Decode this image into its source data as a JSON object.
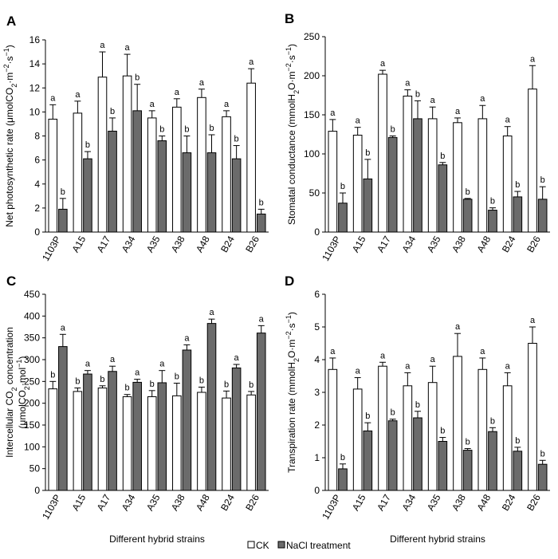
{
  "figure": {
    "legend": [
      {
        "key": "ck",
        "label": "CK",
        "color": "#ffffff"
      },
      {
        "key": "nacl",
        "label": "NaCl treatment",
        "color": "#6b6b6b"
      }
    ]
  },
  "chart_data": [
    {
      "panel": "A",
      "type": "bar",
      "ylabel_parts": [
        [
          "Net photosynthetic rate (μmolCO",
          ""
        ],
        [
          "2",
          "sub"
        ],
        [
          "·m",
          ""
        ],
        [
          "−2",
          "sup"
        ],
        [
          "·s",
          ""
        ],
        [
          "−1",
          "sup"
        ],
        [
          ")",
          ""
        ]
      ],
      "xlabel": "",
      "categories": [
        "1103P",
        "A15",
        "A17",
        "A34",
        "A35",
        "A38",
        "A48",
        "B24",
        "B26"
      ],
      "ylim": [
        0,
        16
      ],
      "yticks": [
        0,
        2,
        4,
        6,
        8,
        10,
        12,
        14,
        16
      ],
      "series": [
        {
          "key": "ck",
          "values": [
            9.4,
            9.9,
            12.9,
            13.0,
            9.5,
            10.4,
            11.2,
            9.6,
            12.4
          ],
          "errors": [
            1.2,
            1.0,
            2.1,
            1.8,
            0.6,
            0.7,
            0.7,
            0.5,
            1.2
          ],
          "letters": [
            "a",
            "a",
            "a",
            "a",
            "a",
            "a",
            "a",
            "a",
            "a"
          ]
        },
        {
          "key": "nacl",
          "values": [
            1.9,
            6.1,
            8.4,
            10.1,
            7.6,
            6.6,
            6.6,
            6.1,
            1.5
          ],
          "errors": [
            0.9,
            0.6,
            1.1,
            2.2,
            0.4,
            1.4,
            1.5,
            1.1,
            0.4
          ],
          "letters": [
            "b",
            "b",
            "b",
            "b",
            "b",
            "b",
            "b",
            "b",
            "b"
          ]
        }
      ]
    },
    {
      "panel": "B",
      "type": "bar",
      "ylabel_parts": [
        [
          "Stomatal conductance (mmolH",
          ""
        ],
        [
          "2",
          "sub"
        ],
        [
          "O·m",
          ""
        ],
        [
          "−2",
          "sup"
        ],
        [
          "·s",
          ""
        ],
        [
          "−1",
          "sup"
        ],
        [
          ")",
          ""
        ]
      ],
      "xlabel": "",
      "categories": [
        "1103P",
        "A15",
        "A17",
        "A34",
        "A35",
        "A38",
        "A48",
        "B24",
        "B26"
      ],
      "ylim": [
        0,
        250
      ],
      "yticks": [
        0,
        50,
        100,
        150,
        200,
        250
      ],
      "series": [
        {
          "key": "ck",
          "values": [
            129,
            124,
            202,
            174,
            145,
            140,
            145,
            123,
            183
          ],
          "errors": [
            15,
            10,
            5,
            8,
            15,
            6,
            17,
            12,
            30
          ],
          "letters": [
            "a",
            "a",
            "a",
            "a",
            "a",
            "a",
            "a",
            "a",
            "a"
          ]
        },
        {
          "key": "nacl",
          "values": [
            37,
            68,
            121,
            145,
            86,
            42,
            28,
            45,
            42
          ],
          "errors": [
            13,
            25,
            2,
            23,
            3,
            1,
            3,
            7,
            16
          ],
          "letters": [
            "b",
            "b",
            "b",
            "b",
            "b",
            "b",
            "b",
            "b",
            "b"
          ]
        }
      ]
    },
    {
      "panel": "C",
      "type": "bar",
      "ylabel_parts": [
        [
          "Intercellular CO",
          ""
        ],
        [
          "2",
          "sub"
        ],
        [
          " concentration",
          ""
        ]
      ],
      "ylabel_parts2": [
        [
          "(μmolCO",
          ""
        ],
        [
          "2",
          "sub"
        ],
        [
          "·mol",
          ""
        ],
        [
          "−1",
          "sup"
        ],
        [
          ")",
          ""
        ]
      ],
      "xlabel": "Different hybrid strains",
      "categories": [
        "1103P",
        "A15",
        "A17",
        "A34",
        "A35",
        "A38",
        "A48",
        "B24",
        "B26"
      ],
      "ylim": [
        0,
        450
      ],
      "yticks": [
        0,
        50,
        100,
        150,
        200,
        250,
        300,
        350,
        400,
        450
      ],
      "series": [
        {
          "key": "ck",
          "values": [
            233,
            227,
            235,
            215,
            215,
            217,
            225,
            212,
            219
          ],
          "errors": [
            17,
            8,
            5,
            5,
            14,
            29,
            12,
            16,
            8
          ],
          "letters": [
            "b",
            "b",
            "b",
            "b",
            "b",
            "b",
            "b",
            "b",
            "b"
          ]
        },
        {
          "key": "nacl",
          "values": [
            330,
            267,
            273,
            248,
            247,
            322,
            383,
            281,
            361
          ],
          "errors": [
            28,
            8,
            12,
            7,
            28,
            12,
            10,
            8,
            17
          ],
          "letters": [
            "a",
            "a",
            "a",
            "a",
            "a",
            "a",
            "a",
            "a",
            "a"
          ]
        }
      ]
    },
    {
      "panel": "D",
      "type": "bar",
      "ylabel_parts": [
        [
          "Transpiration rate (mmolH",
          ""
        ],
        [
          "2",
          "sub"
        ],
        [
          "O·m",
          ""
        ],
        [
          "−2",
          "sup"
        ],
        [
          "·s",
          ""
        ],
        [
          "−1",
          "sup"
        ],
        [
          ")",
          ""
        ]
      ],
      "xlabel": "Different hybrid strains",
      "categories": [
        "1103P",
        "A15",
        "A17",
        "A34",
        "A35",
        "A38",
        "A48",
        "B24",
        "B26"
      ],
      "ylim": [
        0,
        6
      ],
      "yticks": [
        0,
        1,
        2,
        3,
        4,
        5,
        6
      ],
      "series": [
        {
          "key": "ck",
          "values": [
            3.7,
            3.1,
            3.8,
            3.2,
            3.3,
            4.1,
            3.7,
            3.2,
            4.5
          ],
          "errors": [
            0.35,
            0.35,
            0.12,
            0.4,
            0.5,
            0.7,
            0.35,
            0.4,
            0.5
          ],
          "letters": [
            "a",
            "a",
            "a",
            "a",
            "a",
            "a",
            "a",
            "a",
            "a"
          ]
        },
        {
          "key": "nacl",
          "values": [
            0.66,
            1.82,
            2.13,
            2.22,
            1.5,
            1.23,
            1.8,
            1.2,
            0.8
          ],
          "errors": [
            0.15,
            0.25,
            0.05,
            0.2,
            0.12,
            0.05,
            0.12,
            0.12,
            0.12
          ],
          "letters": [
            "b",
            "b",
            "b",
            "b",
            "b",
            "b",
            "b",
            "b",
            "b"
          ]
        }
      ]
    }
  ]
}
